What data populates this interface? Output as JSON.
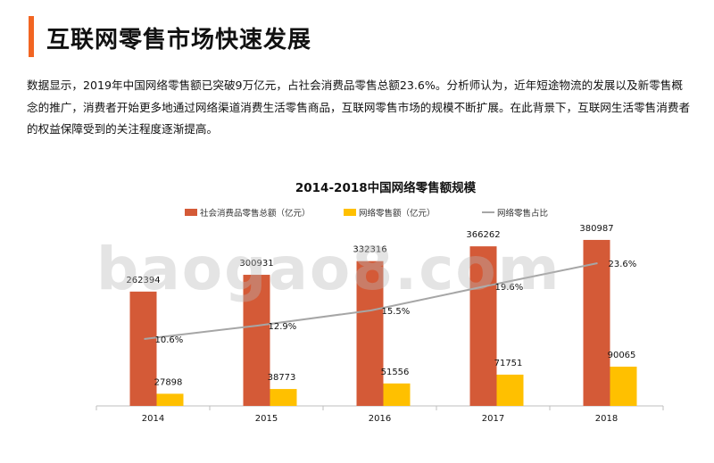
{
  "header": {
    "title": "互联网零售市场快速发展",
    "accent_color": "#f26522"
  },
  "body_text": "数据显示，2019年中国网络零售额已突破9万亿元，占社会消费品零售总额23.6%。分析师认为，近年短途物流的发展以及新零售概念的推广，消费者开始更多地通过网络渠道消费生活零售商品，互联网零售市场的规模不断扩展。在此背景下，互联网生活零售消费者的权益保障受到的关注程度逐渐提高。",
  "watermark": "baogao8.com",
  "chart_data": {
    "type": "bar",
    "title": "2014-2018中国网络零售额规模",
    "categories": [
      "2014",
      "2015",
      "2016",
      "2017",
      "2018"
    ],
    "series": [
      {
        "name": "社会消费品零售总额（亿元）",
        "kind": "bar",
        "color": "#d45a37",
        "values": [
          262394,
          300931,
          332316,
          366262,
          380987
        ]
      },
      {
        "name": "网络零售额（亿元）",
        "kind": "bar",
        "color": "#ffc000",
        "values": [
          27898,
          38773,
          51556,
          71751,
          90065
        ]
      },
      {
        "name": "网络零售占比",
        "kind": "line",
        "color": "#a6a6a6",
        "values": [
          10.6,
          12.9,
          15.5,
          19.6,
          23.6
        ],
        "labels": [
          "10.6%",
          "12.9%",
          "15.5%",
          "19.6%",
          "23.6%"
        ]
      }
    ],
    "legend_position": "top",
    "grid": false
  }
}
